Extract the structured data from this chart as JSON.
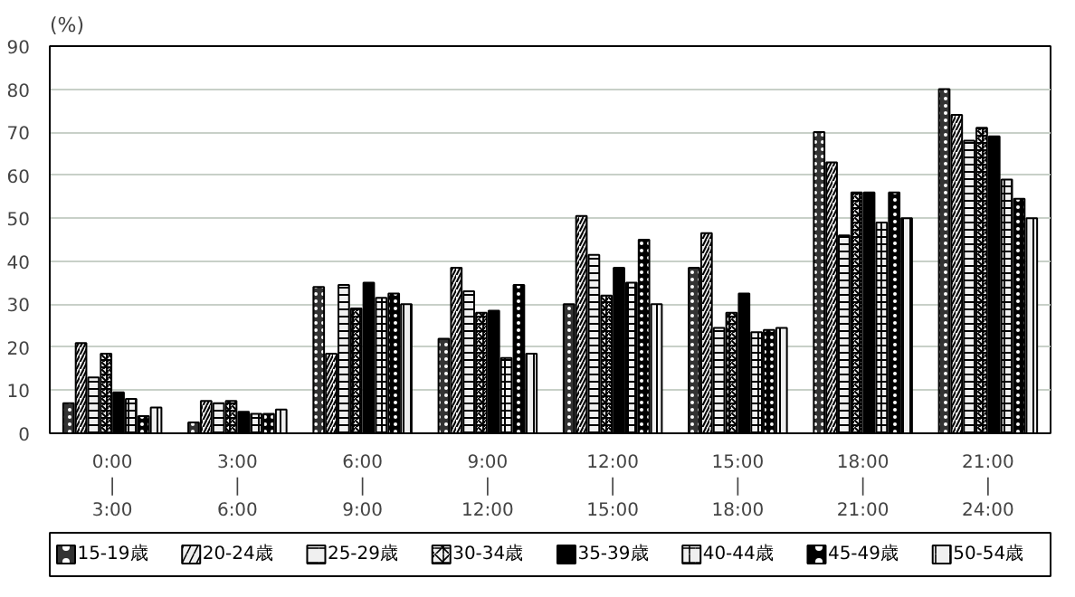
{
  "chart_data": {
    "type": "bar",
    "ylabel": "(%)",
    "categories": [
      "0:00\n|\n3:00",
      "3:00\n|\n6:00",
      "6:00\n|\n9:00",
      "9:00\n|\n12:00",
      "12:00\n|\n15:00",
      "15:00\n|\n18:00",
      "18:00\n|\n21:00",
      "21:00\n|\n24:00"
    ],
    "series": [
      {
        "name": "15-19歳",
        "color": "#333333",
        "values": [
          7,
          2.5,
          34,
          22,
          30,
          38.5,
          70,
          80
        ]
      },
      {
        "name": "20-24歳",
        "color": "#f0f0f0",
        "values": [
          21,
          7.5,
          18.5,
          38.5,
          50.5,
          46.5,
          63,
          74
        ]
      },
      {
        "name": "25-29歳",
        "color": "#f0f0f0",
        "values": [
          13,
          7,
          34.5,
          33,
          41.5,
          24.5,
          46,
          68
        ]
      },
      {
        "name": "30-34歳",
        "color": "#f0f0f0",
        "values": [
          18.5,
          7.5,
          29,
          28,
          32,
          28,
          56,
          71
        ]
      },
      {
        "name": "35-39歳",
        "color": "#000000",
        "values": [
          9.5,
          5,
          35,
          28.5,
          38.5,
          32.5,
          56,
          69
        ]
      },
      {
        "name": "40-44歳",
        "color": "#f0f0f0",
        "values": [
          8,
          4.5,
          31.5,
          17.5,
          35,
          23.5,
          49,
          59
        ]
      },
      {
        "name": "45-49歳",
        "color": "#000000",
        "values": [
          4,
          4.5,
          32.5,
          34.5,
          45,
          24,
          56,
          54.5
        ]
      },
      {
        "name": "50-54歳",
        "color": "#f0f0f0",
        "values": [
          6,
          5.5,
          30,
          18.5,
          30,
          24.5,
          50,
          50
        ]
      }
    ],
    "ylim": [
      0,
      90
    ],
    "yticks": [
      0,
      10,
      20,
      30,
      40,
      50,
      60,
      70,
      80,
      90
    ],
    "grid": "y",
    "legend": "bottom"
  }
}
